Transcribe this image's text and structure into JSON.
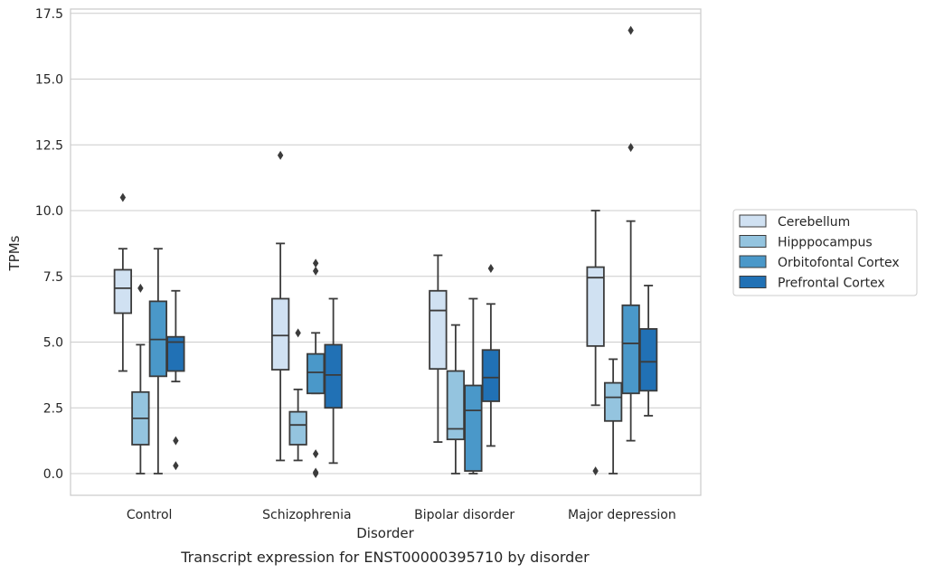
{
  "chart_data": {
    "type": "box",
    "title": "Transcript expression for ENST00000395710 by disorder",
    "xlabel": "Disorder",
    "ylabel": "TPMs",
    "ylim": [
      -0.8,
      17.6
    ],
    "yticks": [
      "0.0",
      "2.5",
      "5.0",
      "7.5",
      "10.0",
      "12.5",
      "15.0",
      "17.5"
    ],
    "grid": true,
    "legend_position": "right",
    "categories": [
      "Control",
      "Schizophrenia",
      "Bipolar disorder",
      "Major depression"
    ],
    "series": [
      {
        "name": "Cerebellum",
        "color": "#d0e1f2",
        "boxes": [
          {
            "q1": 6.1,
            "median": 7.05,
            "q3": 7.75,
            "whisker_low": 3.9,
            "whisker_high": 8.55,
            "outliers": [
              10.5
            ]
          },
          {
            "q1": 3.95,
            "median": 5.25,
            "q3": 6.65,
            "whisker_low": 0.5,
            "whisker_high": 8.75,
            "outliers": [
              12.1
            ]
          },
          {
            "q1": 3.98,
            "median": 6.2,
            "q3": 6.95,
            "whisker_low": 1.2,
            "whisker_high": 8.3,
            "outliers": []
          },
          {
            "q1": 4.85,
            "median": 7.45,
            "q3": 7.85,
            "whisker_low": 2.6,
            "whisker_high": 10.0,
            "outliers": [
              0.1
            ]
          }
        ]
      },
      {
        "name": "Hipppocampus",
        "color": "#94c4df",
        "boxes": [
          {
            "q1": 1.1,
            "median": 2.1,
            "q3": 3.1,
            "whisker_low": 0.0,
            "whisker_high": 4.9,
            "outliers": [
              7.05
            ]
          },
          {
            "q1": 1.1,
            "median": 1.85,
            "q3": 2.35,
            "whisker_low": 0.5,
            "whisker_high": 3.2,
            "outliers": [
              5.35
            ]
          },
          {
            "q1": 1.3,
            "median": 1.7,
            "q3": 3.9,
            "whisker_low": 0.0,
            "whisker_high": 5.65,
            "outliers": []
          },
          {
            "q1": 2.0,
            "median": 2.9,
            "q3": 3.45,
            "whisker_low": 0.0,
            "whisker_high": 4.35,
            "outliers": []
          }
        ]
      },
      {
        "name": "Orbitofontal Cortex",
        "color": "#4a98c9",
        "boxes": [
          {
            "q1": 3.7,
            "median": 5.1,
            "q3": 6.55,
            "whisker_low": 0.0,
            "whisker_high": 8.55,
            "outliers": []
          },
          {
            "q1": 3.05,
            "median": 3.85,
            "q3": 4.55,
            "whisker_low": 3.05,
            "whisker_high": 5.35,
            "outliers": [
              8.0,
              7.7,
              0.75,
              0.05,
              0.0
            ]
          },
          {
            "q1": 0.1,
            "median": 2.4,
            "q3": 3.35,
            "whisker_low": 0.0,
            "whisker_high": 6.65,
            "outliers": []
          },
          {
            "q1": 3.05,
            "median": 4.95,
            "q3": 6.4,
            "whisker_low": 1.25,
            "whisker_high": 9.6,
            "outliers": [
              16.85,
              12.4
            ]
          }
        ]
      },
      {
        "name": "Prefrontal Cortex",
        "color": "#2171b5",
        "boxes": [
          {
            "q1": 3.9,
            "median": 5.0,
            "q3": 5.2,
            "whisker_low": 3.5,
            "whisker_high": 6.95,
            "outliers": [
              1.25,
              0.3
            ]
          },
          {
            "q1": 2.5,
            "median": 3.75,
            "q3": 4.9,
            "whisker_low": 0.4,
            "whisker_high": 6.65,
            "outliers": []
          },
          {
            "q1": 2.75,
            "median": 3.65,
            "q3": 4.7,
            "whisker_low": 1.05,
            "whisker_high": 6.45,
            "outliers": [
              7.8
            ]
          },
          {
            "q1": 3.15,
            "median": 4.25,
            "q3": 5.5,
            "whisker_low": 2.2,
            "whisker_high": 7.15,
            "outliers": []
          }
        ]
      }
    ]
  }
}
